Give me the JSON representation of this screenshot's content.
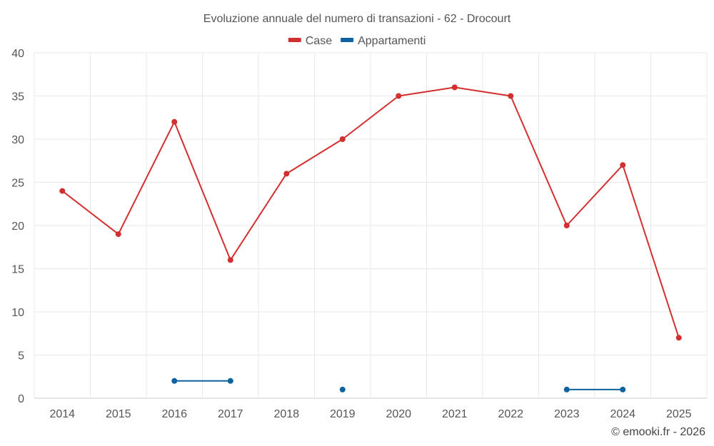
{
  "chart_data": {
    "type": "line",
    "title": "Evoluzione annuale del numero di transazioni - 62 - Drocourt",
    "categories": [
      "2014",
      "2015",
      "2016",
      "2017",
      "2018",
      "2019",
      "2020",
      "2021",
      "2022",
      "2023",
      "2024",
      "2025"
    ],
    "series": [
      {
        "name": "Case",
        "color": "#d32f2f",
        "values": [
          24,
          19,
          32,
          16,
          26,
          30,
          35,
          36,
          35,
          20,
          27,
          7
        ]
      },
      {
        "name": "Appartamenti",
        "color": "#0d62a0",
        "values": [
          null,
          null,
          2,
          2,
          null,
          1,
          null,
          null,
          null,
          1,
          1,
          null
        ]
      }
    ],
    "xlabel": "",
    "ylabel": "",
    "ylim": [
      0,
      40
    ],
    "yticks": [
      0,
      5,
      10,
      15,
      20,
      25,
      30,
      35,
      40
    ],
    "grid": true,
    "legend": "top-center"
  },
  "credit": "© emooki.fr - 2026"
}
